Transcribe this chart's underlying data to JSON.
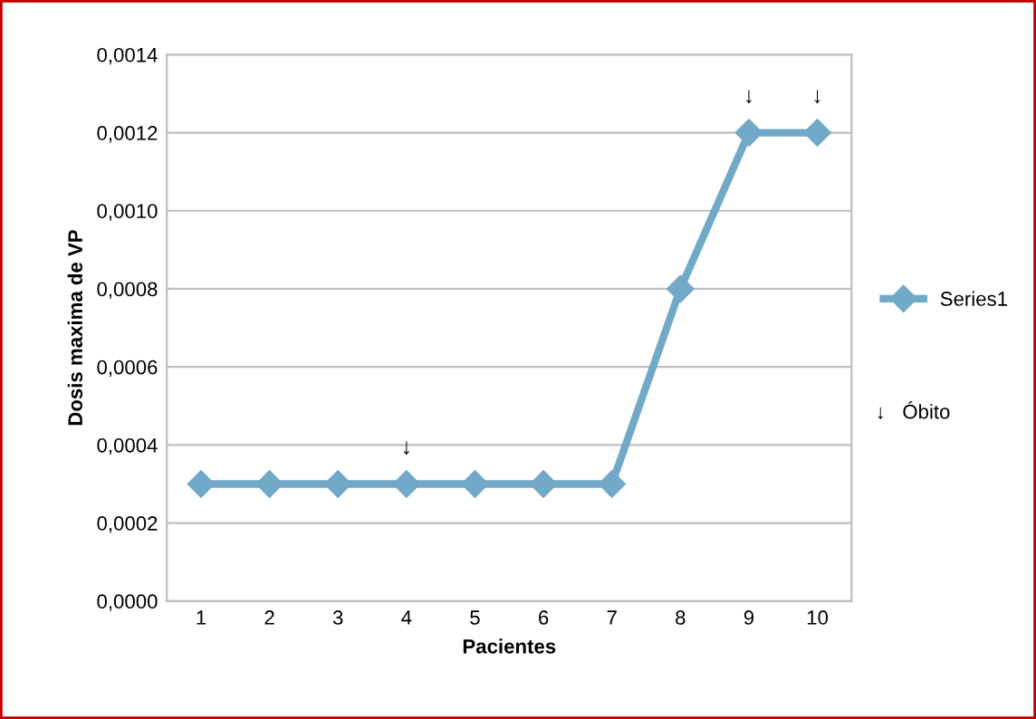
{
  "chart_data": {
    "type": "line",
    "xlabel": "Pacientes",
    "ylabel": "Dosis maxima de VP",
    "categories": [
      "1",
      "2",
      "3",
      "4",
      "5",
      "6",
      "7",
      "8",
      "9",
      "10"
    ],
    "series": [
      {
        "name": "Series1",
        "color": "#72a9c9",
        "values": [
          0.0003,
          0.0003,
          0.0003,
          0.0003,
          0.0003,
          0.0003,
          0.0003,
          0.0008,
          0.0012,
          0.0012
        ]
      }
    ],
    "marker": "diamond",
    "line_style": "solid",
    "ylim": [
      0,
      0.0014
    ],
    "yticks": [
      {
        "value": 0,
        "label": "0,0000"
      },
      {
        "value": 0.0002,
        "label": "0,0002"
      },
      {
        "value": 0.0004,
        "label": "0,0004"
      },
      {
        "value": 0.0006,
        "label": "0,0006"
      },
      {
        "value": 0.0008,
        "label": "0,0008"
      },
      {
        "value": 0.001,
        "label": "0,0010"
      },
      {
        "value": 0.0012,
        "label": "0,0012"
      },
      {
        "value": 0.0014,
        "label": "0,0014"
      }
    ],
    "grid": "y",
    "legend": "right",
    "annotations": [
      {
        "text": "↓",
        "x": "4",
        "y": 0.0003
      },
      {
        "text": "↓",
        "x": "9",
        "y": 0.0012
      },
      {
        "text": "↓",
        "x": "10",
        "y": 0.0012
      },
      "↓   Óbito"
    ]
  }
}
